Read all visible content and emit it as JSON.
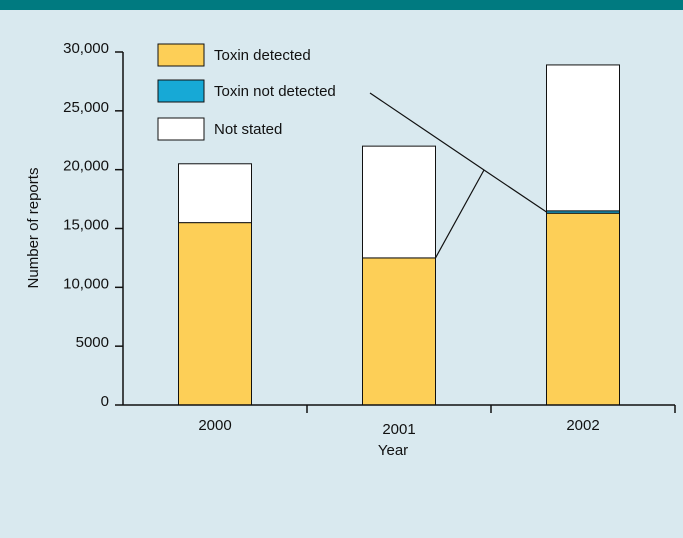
{
  "colors": {
    "background": "#d9e9ef",
    "top_bar": "#007a80",
    "toxin_detected": "#fdcf57",
    "toxin_not_detected": "#17a9d6",
    "not_stated": "#ffffff"
  },
  "chart_data": {
    "type": "bar",
    "stacked": true,
    "title": "",
    "xlabel": "Year",
    "ylabel": "Number of reports",
    "ylim": [
      0,
      30000
    ],
    "yticks": [
      0,
      5000,
      10000,
      15000,
      20000,
      25000,
      30000
    ],
    "ytick_labels": [
      "0",
      "5000",
      "10,000",
      "15,000",
      "20,000",
      "25,000",
      "30,000"
    ],
    "categories": [
      "2000",
      "2001",
      "2002"
    ],
    "series": [
      {
        "name": "Toxin detected",
        "color": "#fdcf57",
        "values": [
          15500,
          12500,
          16300
        ]
      },
      {
        "name": "Toxin not detected",
        "color": "#17a9d6",
        "values": [
          0,
          0,
          200
        ]
      },
      {
        "name": "Not stated",
        "color": "#ffffff",
        "values": [
          5000,
          9500,
          12400
        ]
      }
    ],
    "legend_position": "top-left",
    "annotation": "leader line from the \"Toxin not detected\" legend entry to the thin segment of the 2002 bar",
    "grid": false
  }
}
